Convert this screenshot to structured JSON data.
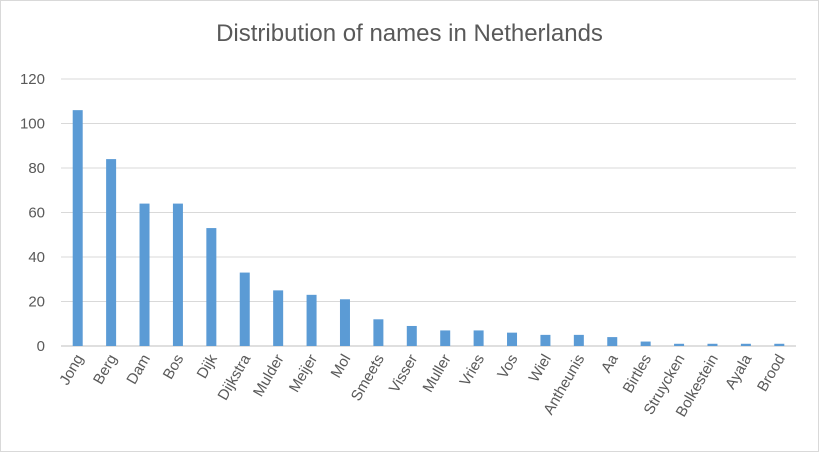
{
  "chart_data": {
    "type": "bar",
    "title": "Distribution of names in Netherlands",
    "xlabel": "",
    "ylabel": "",
    "ylim": [
      0,
      120
    ],
    "yticks": [
      0,
      20,
      40,
      60,
      80,
      100,
      120
    ],
    "grid": true,
    "legend": "none",
    "colors": {
      "bar": "#5b9bd5",
      "grid": "#d9d9d9",
      "text": "#595959"
    },
    "categories": [
      "Jong",
      "Berg",
      "Dam",
      "Bos",
      "Dijk",
      "Dijkstra",
      "Mulder",
      "Meijer",
      "Mol",
      "Smeets",
      "Visser",
      "Muller",
      "Vries",
      "Vos",
      "Wiel",
      "Antheunis",
      "Aa",
      "Birtles",
      "Struycken",
      "Bolkestein",
      "Ayala",
      "Brood"
    ],
    "values": [
      106,
      84,
      64,
      64,
      53,
      33,
      25,
      23,
      21,
      12,
      9,
      7,
      7,
      6,
      5,
      5,
      4,
      2,
      1,
      1,
      1,
      1
    ]
  }
}
